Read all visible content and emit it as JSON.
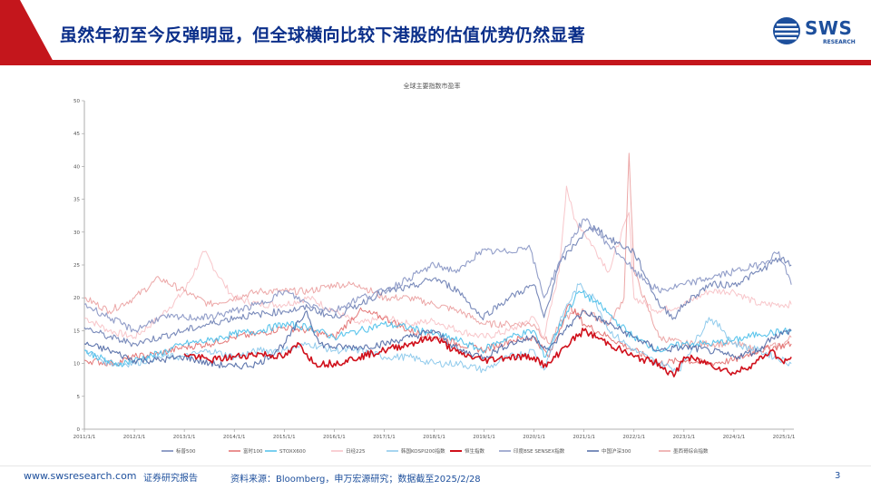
{
  "slide": {
    "title": "虽然年初至今反弹明显，但全球横向比较下港股的估值优势仍然显著",
    "page_number": "3"
  },
  "logo": {
    "text": "SWS",
    "subtext": "RESEARCH"
  },
  "footer": {
    "url": "www.swsresearch.com",
    "tag": "证券研究报告",
    "source": "资料来源：Bloomberg，申万宏源研究；数据截至2025/2/28"
  },
  "colors": {
    "brand_red": "#c4161c",
    "brand_blue": "#1d4f9c",
    "title_blue": "#0b2f8a"
  },
  "chart_data": {
    "type": "line",
    "title": "全球主要指数市盈率",
    "xlabel": "",
    "ylabel": "",
    "ylim": [
      0,
      50
    ],
    "yticks": [
      0,
      5,
      10,
      15,
      20,
      25,
      30,
      35,
      40,
      45,
      50
    ],
    "x_tick_labels": [
      "2011/1/1",
      "2012/1/1",
      "2013/1/1",
      "2014/1/1",
      "2015/1/1",
      "2016/1/1",
      "2017/1/1",
      "2018/1/1",
      "2019/1/1",
      "2020/1/1",
      "2021/1/1",
      "2022/1/1",
      "2023/1/1",
      "2024/1/1",
      "2025/1/1"
    ],
    "x_range": [
      2011.0,
      2025.2
    ],
    "legend_position": "bottom",
    "grid": false,
    "series": [
      {
        "name": "标普500",
        "color": "#6e80b4",
        "width": 1.1,
        "points": [
          [
            2011.0,
            15.5
          ],
          [
            2011.5,
            14
          ],
          [
            2012.0,
            13
          ],
          [
            2012.5,
            14
          ],
          [
            2013.0,
            15
          ],
          [
            2013.5,
            16
          ],
          [
            2014.0,
            17
          ],
          [
            2014.5,
            17.5
          ],
          [
            2015.0,
            18
          ],
          [
            2015.5,
            18.5
          ],
          [
            2016.0,
            17
          ],
          [
            2016.5,
            19
          ],
          [
            2017.0,
            21
          ],
          [
            2017.5,
            21.5
          ],
          [
            2018.0,
            23
          ],
          [
            2018.5,
            21
          ],
          [
            2018.95,
            17
          ],
          [
            2019.5,
            20
          ],
          [
            2020.0,
            22
          ],
          [
            2020.2,
            17
          ],
          [
            2020.5,
            25
          ],
          [
            2020.9,
            29
          ],
          [
            2021.2,
            31
          ],
          [
            2021.5,
            29
          ],
          [
            2022.0,
            27
          ],
          [
            2022.5,
            19
          ],
          [
            2022.8,
            17
          ],
          [
            2023.0,
            19
          ],
          [
            2023.5,
            22
          ],
          [
            2024.0,
            22
          ],
          [
            2024.5,
            24
          ],
          [
            2024.9,
            26
          ],
          [
            2025.15,
            25
          ]
        ]
      },
      {
        "name": "富时100",
        "color": "#e26d6d",
        "width": 1.0,
        "points": [
          [
            2011.0,
            10.5
          ],
          [
            2011.6,
            10
          ],
          [
            2012.0,
            11
          ],
          [
            2012.5,
            11.5
          ],
          [
            2013.0,
            12.5
          ],
          [
            2013.5,
            13
          ],
          [
            2014.0,
            14
          ],
          [
            2014.5,
            14.5
          ],
          [
            2015.0,
            15.5
          ],
          [
            2015.5,
            15
          ],
          [
            2016.0,
            14
          ],
          [
            2016.5,
            18
          ],
          [
            2017.0,
            17
          ],
          [
            2017.5,
            15
          ],
          [
            2018.0,
            14
          ],
          [
            2018.5,
            13
          ],
          [
            2019.0,
            12
          ],
          [
            2019.5,
            13.5
          ],
          [
            2020.0,
            14
          ],
          [
            2020.3,
            11
          ],
          [
            2020.7,
            19
          ],
          [
            2021.0,
            16
          ],
          [
            2021.5,
            14
          ],
          [
            2022.0,
            12
          ],
          [
            2022.5,
            10
          ],
          [
            2023.0,
            10.5
          ],
          [
            2023.5,
            10
          ],
          [
            2024.0,
            10.5
          ],
          [
            2024.5,
            12
          ],
          [
            2025.15,
            13
          ]
        ]
      },
      {
        "name": "STOXX600",
        "color": "#4ec0ea",
        "width": 1.1,
        "points": [
          [
            2011.0,
            12
          ],
          [
            2011.6,
            9.8
          ],
          [
            2012.0,
            10.5
          ],
          [
            2012.5,
            11.5
          ],
          [
            2013.0,
            13
          ],
          [
            2013.5,
            13.5
          ],
          [
            2014.0,
            14.5
          ],
          [
            2014.5,
            15
          ],
          [
            2015.0,
            16
          ],
          [
            2015.5,
            15.5
          ],
          [
            2016.0,
            14
          ],
          [
            2016.5,
            15
          ],
          [
            2017.0,
            16
          ],
          [
            2017.5,
            15.5
          ],
          [
            2018.0,
            14.5
          ],
          [
            2018.5,
            13.5
          ],
          [
            2018.95,
            12
          ],
          [
            2019.5,
            14
          ],
          [
            2020.0,
            15
          ],
          [
            2020.2,
            11
          ],
          [
            2020.6,
            17
          ],
          [
            2020.9,
            21
          ],
          [
            2021.3,
            19
          ],
          [
            2021.7,
            16
          ],
          [
            2022.0,
            14
          ],
          [
            2022.5,
            12
          ],
          [
            2023.0,
            13
          ],
          [
            2023.5,
            13
          ],
          [
            2024.0,
            13.5
          ],
          [
            2024.5,
            14.5
          ],
          [
            2025.15,
            15
          ]
        ]
      },
      {
        "name": "日经225",
        "color": "#f7c1c6",
        "width": 1.0,
        "points": [
          [
            2011.0,
            17
          ],
          [
            2011.5,
            15
          ],
          [
            2012.0,
            14
          ],
          [
            2012.5,
            17
          ],
          [
            2013.0,
            21
          ],
          [
            2013.4,
            27
          ],
          [
            2013.8,
            22
          ],
          [
            2014.0,
            20
          ],
          [
            2014.5,
            19
          ],
          [
            2015.0,
            19
          ],
          [
            2015.5,
            20
          ],
          [
            2016.0,
            18
          ],
          [
            2016.5,
            16
          ],
          [
            2017.0,
            17
          ],
          [
            2017.5,
            16
          ],
          [
            2018.0,
            16.5
          ],
          [
            2018.5,
            15
          ],
          [
            2019.0,
            14
          ],
          [
            2019.5,
            15
          ],
          [
            2020.0,
            17
          ],
          [
            2020.2,
            14
          ],
          [
            2020.5,
            24
          ],
          [
            2020.65,
            37
          ],
          [
            2020.8,
            32
          ],
          [
            2021.0,
            30
          ],
          [
            2021.5,
            24
          ],
          [
            2021.9,
            33
          ],
          [
            2022.0,
            20
          ],
          [
            2022.5,
            18
          ],
          [
            2023.0,
            19
          ],
          [
            2023.5,
            21
          ],
          [
            2024.0,
            21
          ],
          [
            2024.5,
            19
          ],
          [
            2025.15,
            19
          ]
        ]
      },
      {
        "name": "韩国KOSPI200指数",
        "color": "#88c7ea",
        "width": 1.0,
        "points": [
          [
            2011.0,
            12
          ],
          [
            2011.5,
            10
          ],
          [
            2012.0,
            10
          ],
          [
            2012.5,
            11
          ],
          [
            2013.0,
            11
          ],
          [
            2013.5,
            12
          ],
          [
            2014.0,
            11
          ],
          [
            2014.5,
            12
          ],
          [
            2015.0,
            12
          ],
          [
            2015.5,
            13
          ],
          [
            2016.0,
            12
          ],
          [
            2016.5,
            12
          ],
          [
            2017.0,
            11
          ],
          [
            2017.5,
            11
          ],
          [
            2018.0,
            10
          ],
          [
            2018.5,
            10
          ],
          [
            2019.0,
            9
          ],
          [
            2019.5,
            11
          ],
          [
            2020.0,
            12
          ],
          [
            2020.2,
            9
          ],
          [
            2020.6,
            18
          ],
          [
            2020.9,
            22
          ],
          [
            2021.2,
            20
          ],
          [
            2021.5,
            15
          ],
          [
            2022.0,
            12
          ],
          [
            2022.5,
            10
          ],
          [
            2022.9,
            9
          ],
          [
            2023.2,
            13
          ],
          [
            2023.5,
            17
          ],
          [
            2023.8,
            15
          ],
          [
            2024.0,
            13
          ],
          [
            2024.5,
            12
          ],
          [
            2025.15,
            10
          ]
        ]
      },
      {
        "name": "恒生指数",
        "color": "#d0101b",
        "width": 1.6,
        "points": [
          [
            2013.0,
            11.5
          ],
          [
            2013.5,
            10.5
          ],
          [
            2014.0,
            11
          ],
          [
            2014.5,
            11.5
          ],
          [
            2015.0,
            11
          ],
          [
            2015.3,
            13
          ],
          [
            2015.6,
            10
          ],
          [
            2016.0,
            10
          ],
          [
            2016.5,
            11
          ],
          [
            2017.0,
            12
          ],
          [
            2017.5,
            13
          ],
          [
            2018.0,
            14
          ],
          [
            2018.5,
            11.5
          ],
          [
            2019.0,
            10.5
          ],
          [
            2019.5,
            11
          ],
          [
            2020.0,
            11
          ],
          [
            2020.25,
            9.5
          ],
          [
            2020.6,
            12.5
          ],
          [
            2021.0,
            15
          ],
          [
            2021.5,
            13
          ],
          [
            2022.0,
            11
          ],
          [
            2022.5,
            10
          ],
          [
            2022.8,
            8
          ],
          [
            2023.0,
            11
          ],
          [
            2023.5,
            10
          ],
          [
            2024.0,
            8.5
          ],
          [
            2024.4,
            10
          ],
          [
            2024.75,
            12
          ],
          [
            2025.0,
            10
          ],
          [
            2025.15,
            11
          ]
        ]
      },
      {
        "name": "印度BSE SENSEX指数",
        "color": "#8996c4",
        "width": 1.1,
        "points": [
          [
            2011.0,
            19
          ],
          [
            2011.5,
            17
          ],
          [
            2012.0,
            15
          ],
          [
            2012.5,
            17
          ],
          [
            2013.0,
            17
          ],
          [
            2013.5,
            17
          ],
          [
            2014.0,
            18
          ],
          [
            2014.5,
            19
          ],
          [
            2015.0,
            21
          ],
          [
            2015.5,
            19
          ],
          [
            2016.0,
            18
          ],
          [
            2016.5,
            20
          ],
          [
            2017.0,
            21
          ],
          [
            2017.5,
            23
          ],
          [
            2018.0,
            25
          ],
          [
            2018.5,
            24
          ],
          [
            2018.9,
            27
          ],
          [
            2019.5,
            27
          ],
          [
            2019.9,
            28
          ],
          [
            2020.2,
            20
          ],
          [
            2020.6,
            27
          ],
          [
            2021.0,
            32
          ],
          [
            2021.5,
            28
          ],
          [
            2021.8,
            26
          ],
          [
            2022.0,
            24
          ],
          [
            2022.5,
            21
          ],
          [
            2023.0,
            22
          ],
          [
            2023.5,
            23
          ],
          [
            2024.0,
            24
          ],
          [
            2024.5,
            25
          ],
          [
            2024.9,
            27
          ],
          [
            2025.15,
            22
          ]
        ]
      },
      {
        "name": "中国沪深300",
        "color": "#516aa6",
        "width": 1.1,
        "points": [
          [
            2011.0,
            13
          ],
          [
            2011.5,
            12
          ],
          [
            2012.0,
            10.5
          ],
          [
            2012.5,
            10.5
          ],
          [
            2013.0,
            11
          ],
          [
            2013.5,
            10
          ],
          [
            2014.0,
            9.5
          ],
          [
            2014.5,
            10
          ],
          [
            2015.0,
            13
          ],
          [
            2015.45,
            18
          ],
          [
            2015.7,
            13
          ],
          [
            2016.0,
            12.5
          ],
          [
            2016.5,
            12.5
          ],
          [
            2017.0,
            13
          ],
          [
            2017.5,
            14
          ],
          [
            2018.0,
            15
          ],
          [
            2018.5,
            12
          ],
          [
            2019.0,
            11
          ],
          [
            2019.5,
            13
          ],
          [
            2020.0,
            14
          ],
          [
            2020.3,
            12
          ],
          [
            2020.6,
            15
          ],
          [
            2021.0,
            18
          ],
          [
            2021.5,
            16
          ],
          [
            2022.0,
            14
          ],
          [
            2022.5,
            12
          ],
          [
            2023.0,
            12.5
          ],
          [
            2023.5,
            12
          ],
          [
            2024.0,
            11
          ],
          [
            2024.5,
            12
          ],
          [
            2024.75,
            14
          ],
          [
            2025.15,
            15
          ]
        ]
      },
      {
        "name": "墨西哥综合指数",
        "color": "#eaa0a0",
        "width": 1.0,
        "points": [
          [
            2011.0,
            20
          ],
          [
            2011.5,
            18
          ],
          [
            2012.0,
            20
          ],
          [
            2012.5,
            23
          ],
          [
            2013.0,
            21
          ],
          [
            2013.5,
            19
          ],
          [
            2014.0,
            20
          ],
          [
            2014.5,
            21
          ],
          [
            2015.0,
            21
          ],
          [
            2015.5,
            21
          ],
          [
            2016.0,
            22
          ],
          [
            2016.5,
            22
          ],
          [
            2017.0,
            20
          ],
          [
            2017.5,
            20
          ],
          [
            2018.0,
            19
          ],
          [
            2018.5,
            18
          ],
          [
            2019.0,
            16
          ],
          [
            2019.5,
            16
          ],
          [
            2020.0,
            16
          ],
          [
            2020.3,
            13
          ],
          [
            2020.6,
            17
          ],
          [
            2021.0,
            18
          ],
          [
            2021.5,
            16
          ],
          [
            2021.8,
            20
          ],
          [
            2021.9,
            42
          ],
          [
            2022.0,
            24
          ],
          [
            2022.5,
            14
          ],
          [
            2023.0,
            13
          ],
          [
            2023.5,
            13
          ],
          [
            2024.0,
            13
          ],
          [
            2024.5,
            12
          ],
          [
            2025.0,
            13
          ],
          [
            2025.15,
            14
          ]
        ]
      }
    ]
  }
}
